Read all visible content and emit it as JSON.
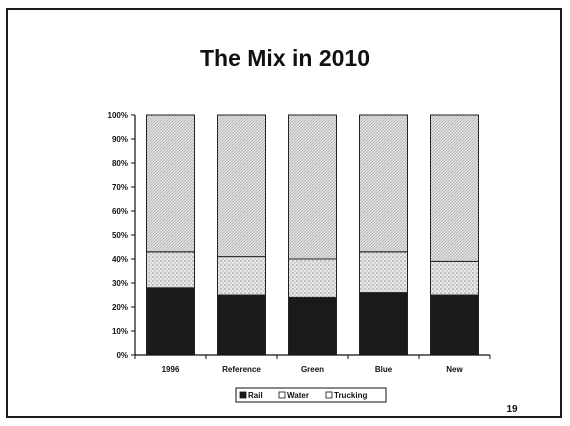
{
  "slide": {
    "page_number": "19"
  },
  "chart_data": {
    "type": "bar",
    "stacked": true,
    "title": "The Mix in 2010",
    "categories": [
      "1996",
      "Reference",
      "Green",
      "Blue",
      "New"
    ],
    "series": [
      {
        "name": "Rail",
        "values": [
          28,
          25,
          24,
          26,
          25
        ],
        "color": "#1a1a1a"
      },
      {
        "name": "Water",
        "values": [
          15,
          16,
          16,
          17,
          14
        ],
        "color": "#d9d9d9"
      },
      {
        "name": "Trucking",
        "values": [
          57,
          59,
          60,
          57,
          61
        ],
        "color": "#cfcfcf"
      }
    ],
    "ylim": [
      0,
      100
    ],
    "yticks": [
      "0%",
      "10%",
      "20%",
      "30%",
      "40%",
      "50%",
      "60%",
      "70%",
      "80%",
      "90%",
      "100%"
    ],
    "legend_position": "bottom",
    "grid": false
  }
}
